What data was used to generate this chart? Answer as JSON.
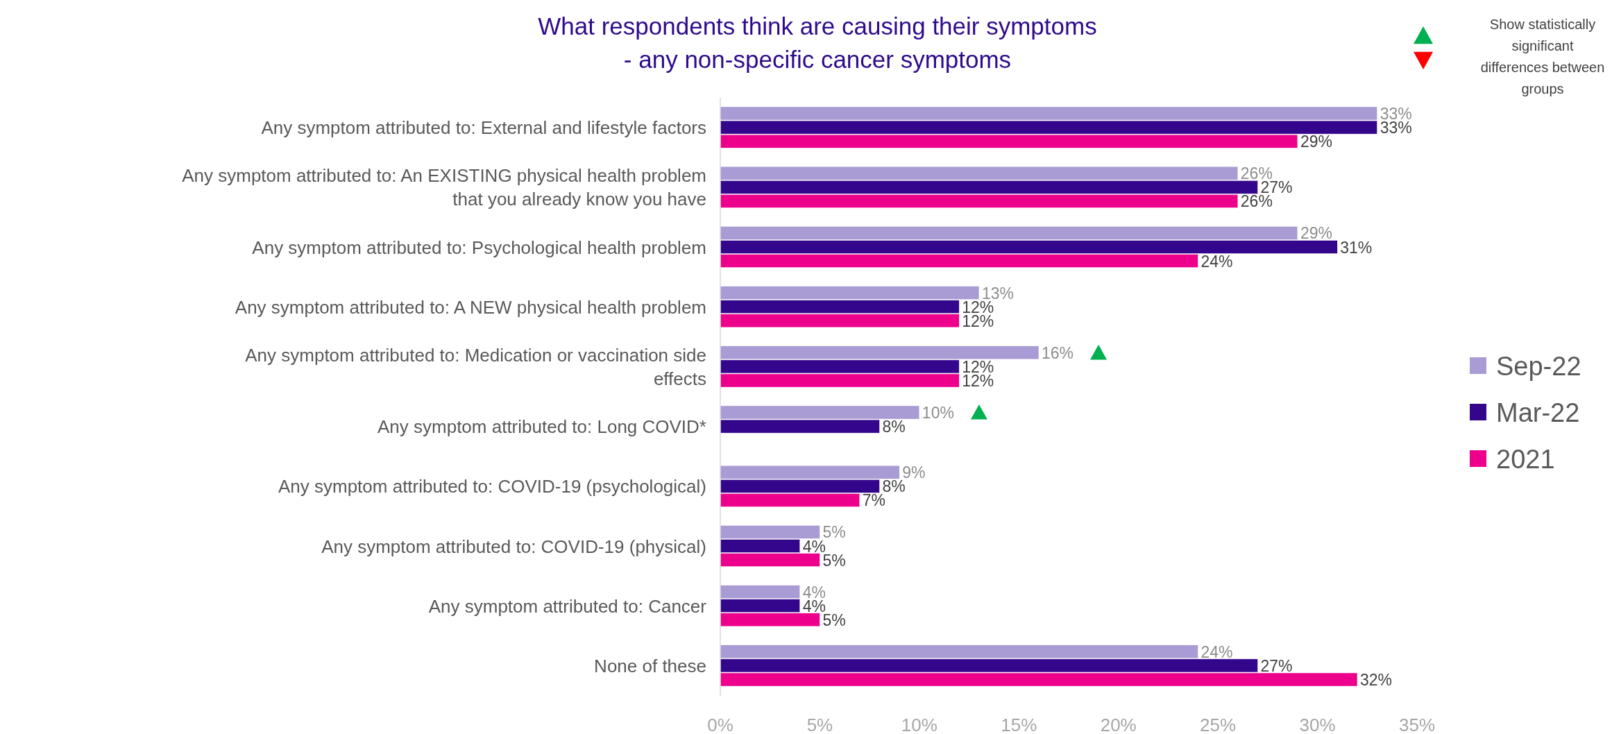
{
  "chart_data": {
    "type": "bar",
    "orientation": "horizontal",
    "title": "What respondents think are causing their symptoms\n- any non-specific cancer symptoms",
    "categories": [
      "Any symptom attributed to: External and lifestyle factors",
      "Any symptom attributed to: An EXISTING physical health problem that you already know you have",
      "Any symptom attributed to: Psychological health problem",
      "Any symptom attributed to: A NEW physical health problem",
      "Any symptom attributed to: Medication or vaccination side effects",
      "Any symptom attributed to: Long COVID*",
      "Any symptom attributed to: COVID-19 (psychological)",
      "Any symptom attributed to: COVID-19 (physical)",
      "Any symptom attributed to: Cancer",
      "None of these"
    ],
    "series": [
      {
        "name": "Sep-22",
        "color": "#a99bd3",
        "values": [
          33,
          26,
          29,
          13,
          16,
          10,
          9,
          5,
          4,
          24
        ],
        "value_labels": [
          "33%",
          "26%",
          "29%",
          "13%",
          "16%",
          "10%",
          "9%",
          "5%",
          "4%",
          "24%"
        ]
      },
      {
        "name": "Mar-22",
        "color": "#34068c",
        "values": [
          33,
          27,
          31,
          12,
          12,
          8,
          8,
          4,
          4,
          27
        ],
        "value_labels": [
          "33%",
          "27%",
          "31%",
          "12%",
          "12%",
          "8%",
          "8%",
          "4%",
          "4%",
          "27%"
        ]
      },
      {
        "name": "2021",
        "color": "#ec008c",
        "values": [
          29,
          26,
          24,
          12,
          12,
          null,
          7,
          5,
          5,
          32
        ],
        "value_labels": [
          "29%",
          "26%",
          "24%",
          "12%",
          "12%",
          null,
          "7%",
          "5%",
          "5%",
          "32%"
        ]
      },
      {
        "type": "scatter",
        "marker": "triangle",
        "color": "#00b050",
        "values": [
          null,
          null,
          null,
          null,
          19,
          13,
          null,
          null,
          null,
          null
        ]
      }
    ],
    "xlim": [
      0,
      35
    ],
    "xticks": [
      {
        "value": 0,
        "label": "0%"
      },
      {
        "value": 5,
        "label": "5%"
      },
      {
        "value": 10,
        "label": "10%"
      },
      {
        "value": 15,
        "label": "15%"
      },
      {
        "value": 20,
        "label": "20%"
      },
      {
        "value": 25,
        "label": "25%"
      },
      {
        "value": 30,
        "label": "30%"
      },
      {
        "value": 35,
        "label": "35%"
      }
    ],
    "grid": false,
    "legend": "right",
    "annotations": [
      "Show statistically significant differences between groups"
    ]
  }
}
